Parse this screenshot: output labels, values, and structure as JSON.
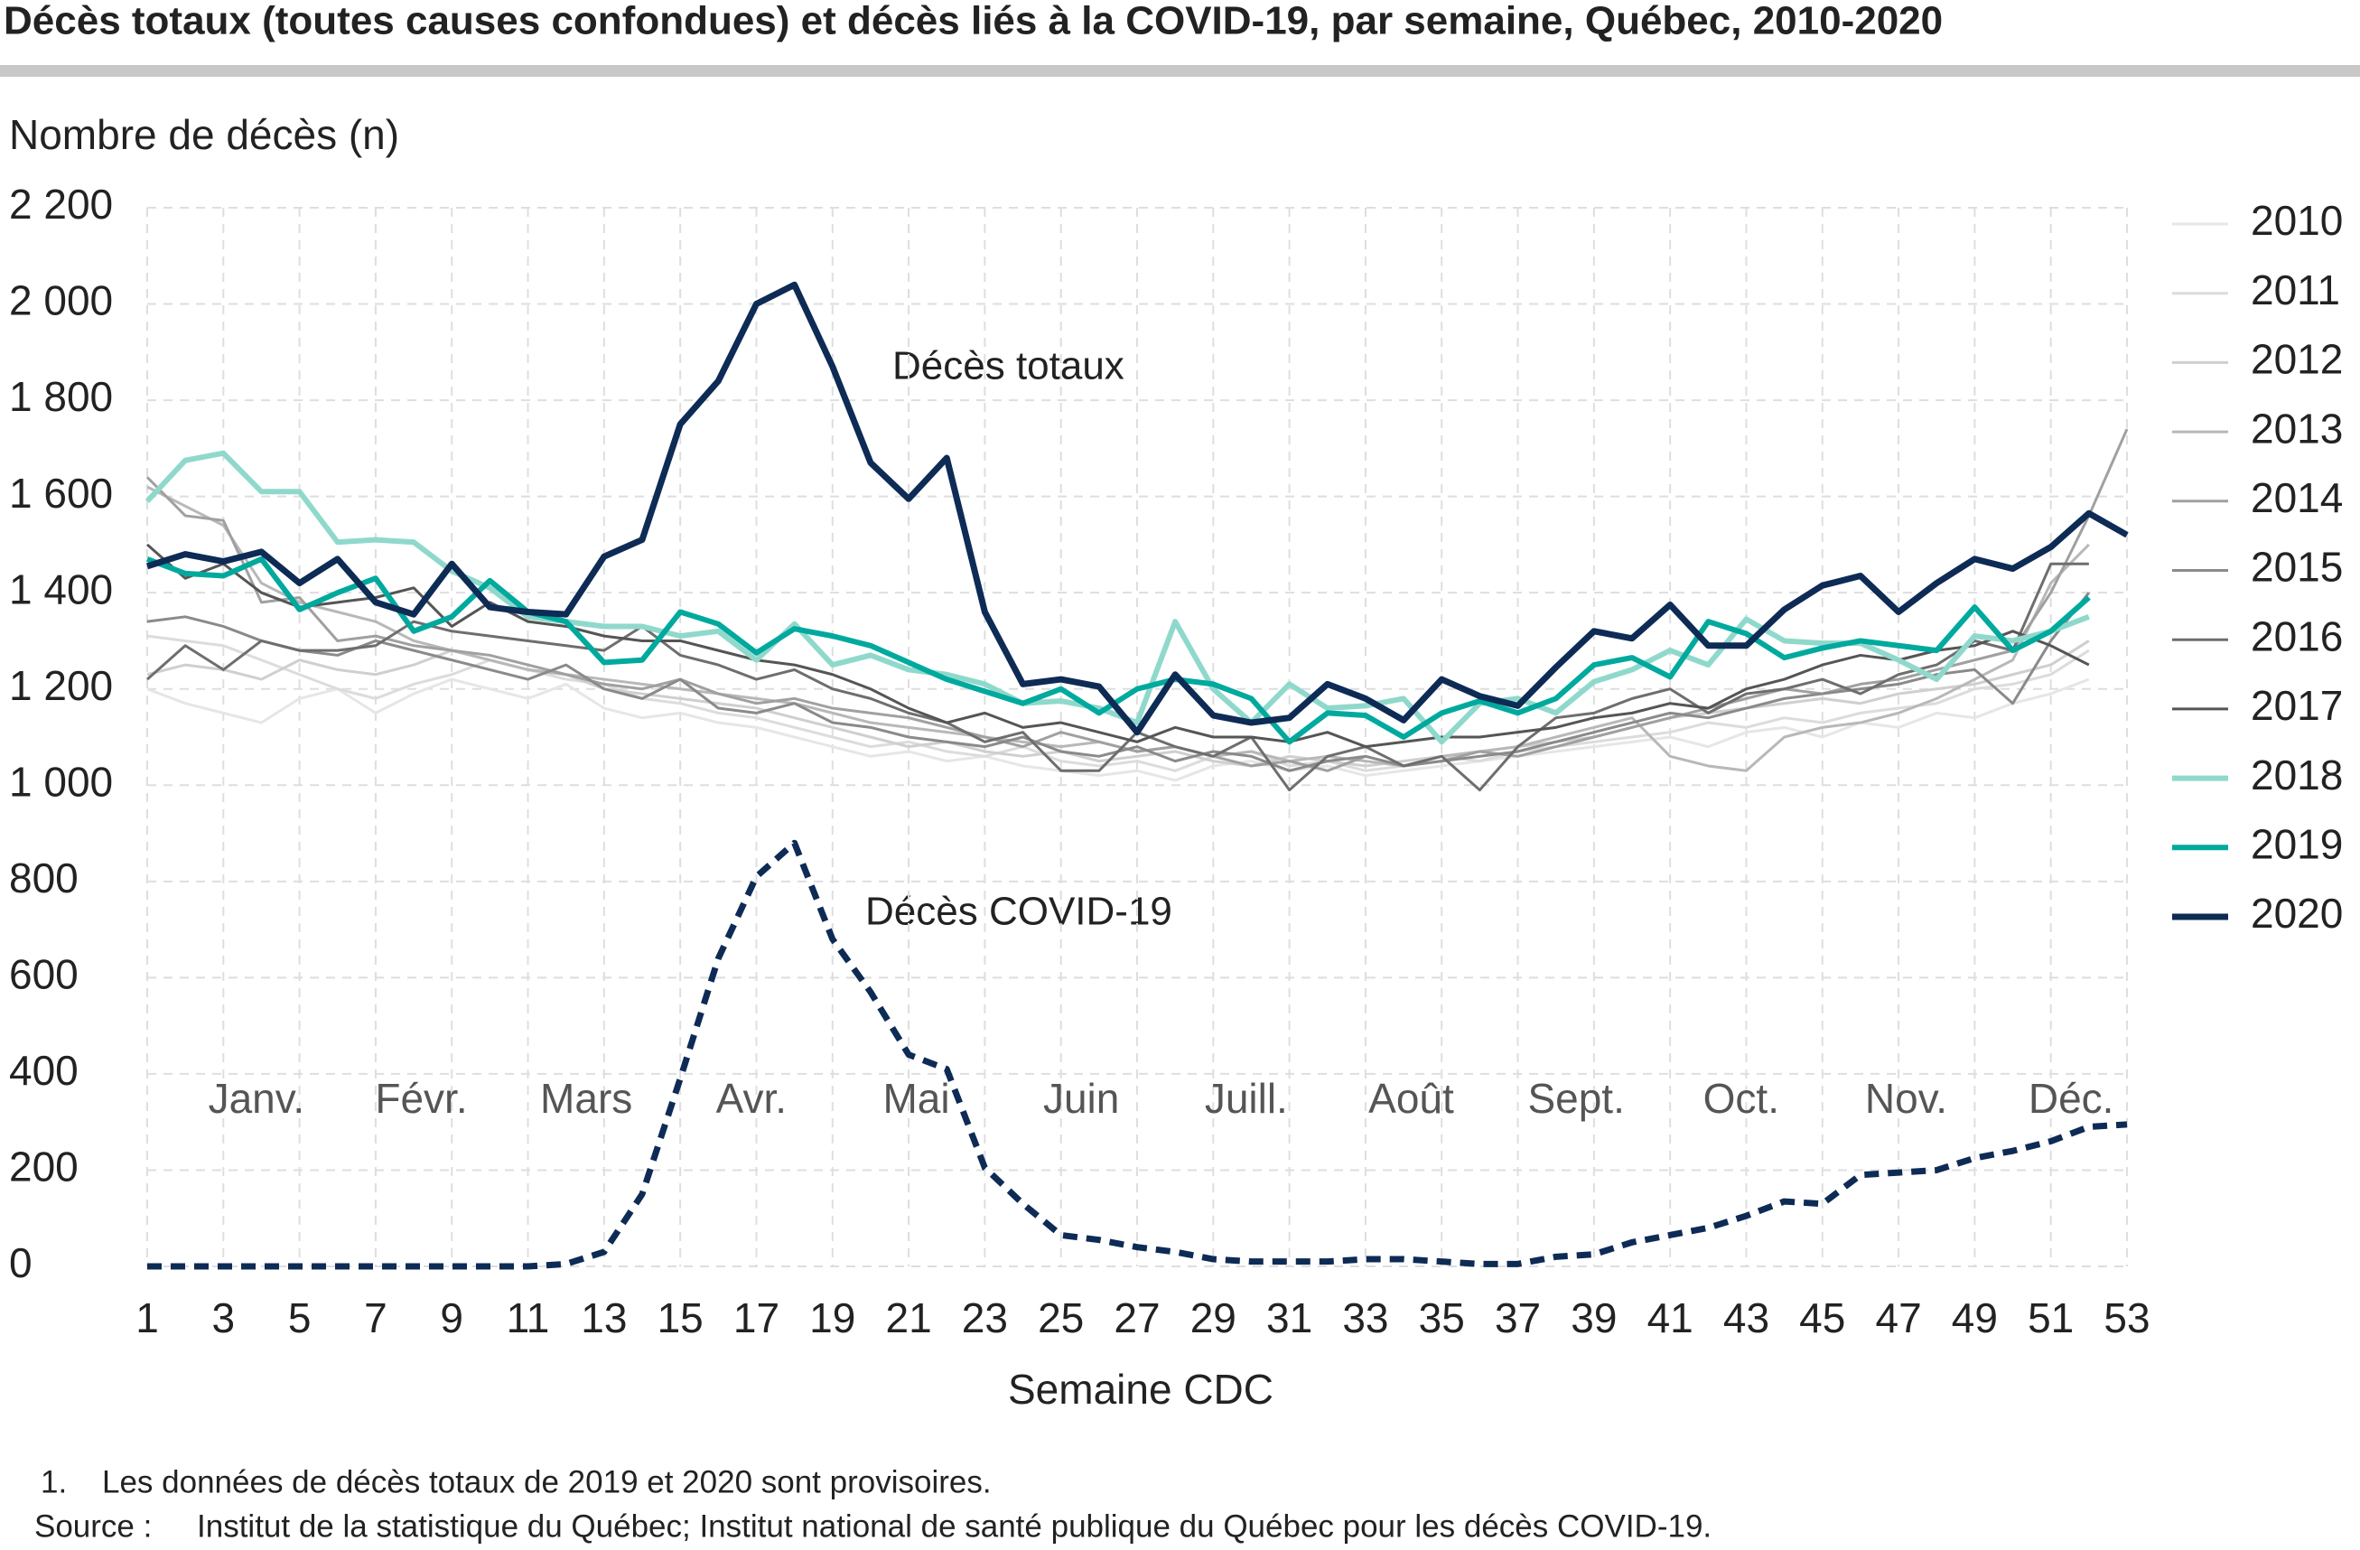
{
  "chart_data": {
    "type": "line",
    "title": "Décès totaux (toutes causes confondues) et décès liés à la COVID-19, par semaine, Québec, 2010-2020",
    "y_label": "Nombre de décès (n)",
    "x_label": "Semaine CDC",
    "annotations": [
      "Décès totaux",
      "Décès COVID-19"
    ],
    "months": [
      "Janv.",
      "Févr.",
      "Mars",
      "Avr.",
      "Mai",
      "Juin",
      "Juill.",
      "Août",
      "Sept.",
      "Oct.",
      "Nov.",
      "Déc."
    ],
    "footnote": {
      "marker": "1.",
      "text": "Les données de décès totaux de 2019 et 2020 sont provisoires."
    },
    "source": {
      "label": "Source :",
      "text": "Institut de la statistique du Québec; Institut national de santé publique du Québec pour les décès COVID-19."
    },
    "grid": true,
    "legend": "right",
    "xlim": [
      1,
      53
    ],
    "ylim": [
      0,
      2200
    ],
    "xticks": [
      1,
      3,
      5,
      7,
      9,
      11,
      13,
      15,
      17,
      19,
      21,
      23,
      25,
      27,
      29,
      31,
      33,
      35,
      37,
      39,
      41,
      43,
      45,
      47,
      49,
      51,
      53
    ],
    "yticks": [
      0,
      200,
      400,
      600,
      800,
      {
        "value": 1000,
        "label": "1 000"
      },
      {
        "value": 1200,
        "label": "1 200"
      },
      {
        "value": 1400,
        "label": "1 400"
      },
      {
        "value": 1600,
        "label": "1 600"
      },
      {
        "value": 1800,
        "label": "1 800"
      },
      {
        "value": 2000,
        "label": "2 000"
      },
      {
        "value": 2200,
        "label": "2 200"
      }
    ],
    "x": [
      1,
      2,
      3,
      4,
      5,
      6,
      7,
      8,
      9,
      10,
      11,
      12,
      13,
      14,
      15,
      16,
      17,
      18,
      19,
      20,
      21,
      22,
      23,
      24,
      25,
      26,
      27,
      28,
      29,
      30,
      31,
      32,
      33,
      34,
      35,
      36,
      37,
      38,
      39,
      40,
      41,
      42,
      43,
      44,
      45,
      46,
      47,
      48,
      49,
      50,
      51,
      52,
      53
    ],
    "series": [
      {
        "name": "2010",
        "color": "#e6e6e6",
        "width": 3,
        "values": [
          1200,
          1170,
          1150,
          1130,
          1180,
          1200,
          1150,
          1190,
          1220,
          1200,
          1180,
          1210,
          1160,
          1140,
          1150,
          1130,
          1120,
          1100,
          1080,
          1060,
          1070,
          1050,
          1060,
          1040,
          1030,
          1020,
          1030,
          1010,
          1040,
          1050,
          1030,
          1040,
          1020,
          1030,
          1040,
          1050,
          1060,
          1070,
          1080,
          1090,
          1100,
          1080,
          1110,
          1120,
          1100,
          1130,
          1120,
          1150,
          1140,
          1170,
          1190,
          1220,
          null
        ]
      },
      {
        "name": "2011",
        "color": "#dcdcdc",
        "width": 3,
        "values": [
          1310,
          1300,
          1290,
          1260,
          1230,
          1200,
          1180,
          1210,
          1230,
          1260,
          1240,
          1220,
          1210,
          1180,
          1170,
          1150,
          1140,
          1120,
          1100,
          1080,
          1090,
          1070,
          1060,
          1080,
          1050,
          1040,
          1050,
          1030,
          1060,
          1070,
          1040,
          1050,
          1030,
          1040,
          1060,
          1050,
          1070,
          1080,
          1090,
          1100,
          1110,
          1130,
          1120,
          1140,
          1130,
          1150,
          1160,
          1170,
          1200,
          1210,
          1230,
          1280,
          null
        ]
      },
      {
        "name": "2012",
        "color": "#cfcfcf",
        "width": 3,
        "values": [
          1230,
          1250,
          1240,
          1220,
          1260,
          1240,
          1230,
          1250,
          1280,
          1260,
          1240,
          1230,
          1200,
          1190,
          1180,
          1170,
          1160,
          1140,
          1120,
          1100,
          1080,
          1090,
          1070,
          1060,
          1070,
          1050,
          1060,
          1070,
          1050,
          1040,
          1060,
          1050,
          1040,
          1050,
          1060,
          1070,
          1080,
          1090,
          1100,
          1120,
          1140,
          1150,
          1160,
          1170,
          1180,
          1170,
          1190,
          1200,
          1210,
          1230,
          1250,
          1300,
          null
        ]
      },
      {
        "name": "2013",
        "color": "#b8b8b8",
        "width": 3,
        "values": [
          1620,
          1580,
          1540,
          1420,
          1380,
          1360,
          1340,
          1300,
          1280,
          1260,
          1240,
          1230,
          1220,
          1210,
          1200,
          1190,
          1180,
          1170,
          1150,
          1130,
          1120,
          1110,
          1100,
          1090,
          1080,
          1090,
          1070,
          1080,
          1060,
          1070,
          1050,
          1060,
          1050,
          1040,
          1060,
          1070,
          1080,
          1100,
          1120,
          1140,
          1060,
          1040,
          1030,
          1100,
          1120,
          1130,
          1150,
          1180,
          1220,
          1260,
          1420,
          1500,
          null
        ]
      },
      {
        "name": "2014",
        "color": "#a0a0a0",
        "width": 3,
        "values": [
          1640,
          1560,
          1550,
          1380,
          1390,
          1300,
          1310,
          1290,
          1280,
          1270,
          1250,
          1230,
          1210,
          1200,
          1220,
          1190,
          1170,
          1180,
          1160,
          1150,
          1140,
          1120,
          1100,
          1080,
          1110,
          1090,
          1070,
          1080,
          1060,
          1040,
          1050,
          1030,
          1060,
          1040,
          1050,
          1070,
          1060,
          1080,
          1100,
          1120,
          1140,
          1160,
          1180,
          1200,
          1190,
          1210,
          1220,
          1240,
          1260,
          1280,
          1400,
          1560,
          1740
        ]
      },
      {
        "name": "2015",
        "color": "#8a8a8a",
        "width": 3,
        "values": [
          1340,
          1350,
          1330,
          1300,
          1280,
          1270,
          1300,
          1280,
          1260,
          1240,
          1220,
          1250,
          1200,
          1180,
          1220,
          1160,
          1150,
          1170,
          1130,
          1120,
          1100,
          1090,
          1080,
          1100,
          1070,
          1060,
          1080,
          1050,
          1070,
          1060,
          1030,
          1050,
          1060,
          1040,
          1050,
          1060,
          1070,
          1090,
          1110,
          1130,
          1150,
          1140,
          1160,
          1180,
          1190,
          1200,
          1210,
          1230,
          1240,
          1170,
          1300,
          1400,
          null
        ]
      },
      {
        "name": "2016",
        "color": "#6e6e6e",
        "width": 3,
        "values": [
          1220,
          1290,
          1240,
          1300,
          1280,
          1280,
          1290,
          1340,
          1320,
          1310,
          1300,
          1290,
          1280,
          1330,
          1270,
          1250,
          1220,
          1240,
          1200,
          1180,
          1150,
          1130,
          1090,
          1110,
          1030,
          1030,
          1110,
          1080,
          1060,
          1100,
          990,
          1060,
          1080,
          1040,
          1060,
          990,
          1080,
          1140,
          1150,
          1180,
          1200,
          1150,
          1190,
          1200,
          1220,
          1190,
          1230,
          1250,
          1300,
          1280,
          1460,
          1460,
          null
        ]
      },
      {
        "name": "2017",
        "color": "#555555",
        "width": 3,
        "values": [
          1500,
          1430,
          1460,
          1400,
          1370,
          1380,
          1390,
          1410,
          1330,
          1380,
          1340,
          1330,
          1310,
          1300,
          1300,
          1280,
          1260,
          1250,
          1230,
          1200,
          1160,
          1130,
          1150,
          1120,
          1130,
          1110,
          1090,
          1120,
          1100,
          1100,
          1090,
          1110,
          1080,
          1090,
          1100,
          1100,
          1110,
          1120,
          1140,
          1150,
          1170,
          1160,
          1200,
          1220,
          1250,
          1270,
          1260,
          1280,
          1290,
          1320,
          1290,
          1250,
          null
        ]
      },
      {
        "name": "2018",
        "color": "#8fd9cc",
        "width": 6,
        "values": [
          1590,
          1675,
          1690,
          1610,
          1610,
          1505,
          1510,
          1505,
          1445,
          1410,
          1350,
          1340,
          1330,
          1330,
          1310,
          1320,
          1260,
          1335,
          1250,
          1270,
          1240,
          1230,
          1210,
          1170,
          1175,
          1160,
          1130,
          1340,
          1200,
          1130,
          1210,
          1160,
          1165,
          1180,
          1090,
          1170,
          1180,
          1150,
          1215,
          1240,
          1280,
          1250,
          1345,
          1300,
          1295,
          1295,
          1260,
          1220,
          1310,
          1300,
          1320,
          1350,
          null
        ]
      },
      {
        "name": "2019",
        "color": "#00a99d",
        "width": 6,
        "values": [
          1470,
          1440,
          1435,
          1470,
          1365,
          1400,
          1430,
          1320,
          1350,
          1425,
          1360,
          1340,
          1255,
          1260,
          1360,
          1335,
          1275,
          1325,
          1310,
          1290,
          1255,
          1220,
          1195,
          1170,
          1200,
          1150,
          1200,
          1220,
          1210,
          1180,
          1090,
          1150,
          1145,
          1100,
          1150,
          1175,
          1150,
          1180,
          1250,
          1265,
          1225,
          1340,
          1315,
          1265,
          1285,
          1300,
          1290,
          1280,
          1370,
          1280,
          1320,
          1390,
          null
        ]
      },
      {
        "name": "2020",
        "color": "#0d2b55",
        "width": 7,
        "values": [
          1455,
          1480,
          1465,
          1485,
          1420,
          1470,
          1380,
          1355,
          1460,
          1370,
          1360,
          1355,
          1475,
          1510,
          1750,
          1840,
          2000,
          2040,
          1870,
          1670,
          1595,
          1680,
          1360,
          1210,
          1220,
          1205,
          1110,
          1230,
          1145,
          1130,
          1140,
          1210,
          1180,
          1135,
          1220,
          1185,
          1165,
          1245,
          1320,
          1305,
          1375,
          1290,
          1290,
          1365,
          1415,
          1435,
          1360,
          1420,
          1470,
          1450,
          1495,
          1565,
          1520
        ]
      },
      {
        "color": "#0d2b55",
        "width": 7,
        "dashed": true,
        "values": [
          0,
          0,
          0,
          0,
          0,
          0,
          0,
          0,
          0,
          0,
          0,
          5,
          30,
          150,
          390,
          640,
          810,
          880,
          680,
          570,
          440,
          410,
          205,
          130,
          65,
          55,
          40,
          30,
          15,
          10,
          10,
          10,
          15,
          15,
          10,
          5,
          5,
          20,
          25,
          50,
          65,
          80,
          105,
          135,
          130,
          190,
          195,
          200,
          225,
          240,
          260,
          290,
          295
        ]
      }
    ]
  }
}
